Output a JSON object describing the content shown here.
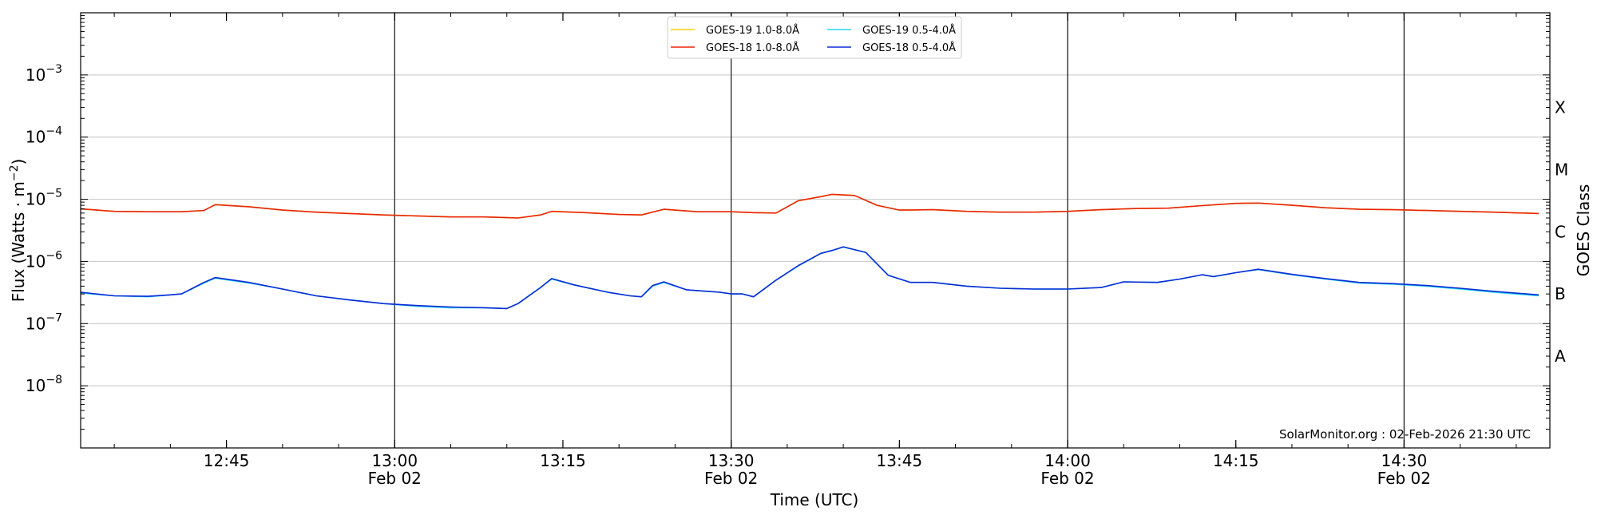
{
  "chart_data": {
    "type": "line",
    "xlabel": "Time (UTC)",
    "ylabel": "Flux (Watts · m",
    "ylabel_sup": "−2",
    "ylabel_close": ")",
    "right_axis_label": "GOES Class",
    "ylim": [
      1e-09,
      0.01
    ],
    "yscale": "log",
    "xlim": [
      "12:32",
      "14:43"
    ],
    "grid": "horizontal at decades",
    "legend_placement": "top-center",
    "x_ticks": [
      {
        "t": "12:45",
        "label": "12:45",
        "date": "",
        "major": false
      },
      {
        "t": "13:00",
        "label": "13:00",
        "date": "Feb 02",
        "major": true
      },
      {
        "t": "13:15",
        "label": "13:15",
        "date": "",
        "major": false
      },
      {
        "t": "13:30",
        "label": "13:30",
        "date": "Feb 02",
        "major": true
      },
      {
        "t": "13:45",
        "label": "13:45",
        "date": "",
        "major": false
      },
      {
        "t": "14:00",
        "label": "14:00",
        "date": "Feb 02",
        "major": true
      },
      {
        "t": "14:15",
        "label": "14:15",
        "date": "",
        "major": false
      },
      {
        "t": "14:30",
        "label": "14:30",
        "date": "Feb 02",
        "major": true
      }
    ],
    "y_ticks": [
      {
        "exp": -8,
        "label": "10",
        "sup": "−8"
      },
      {
        "exp": -7,
        "label": "10",
        "sup": "−7"
      },
      {
        "exp": -6,
        "label": "10",
        "sup": "−6"
      },
      {
        "exp": -5,
        "label": "10",
        "sup": "−5"
      },
      {
        "exp": -4,
        "label": "10",
        "sup": "−4"
      },
      {
        "exp": -3,
        "label": "10",
        "sup": "−3"
      }
    ],
    "goes_classes": [
      {
        "label": "A",
        "flux": 3e-08
      },
      {
        "label": "B",
        "flux": 3e-07
      },
      {
        "label": "C",
        "flux": 3e-06
      },
      {
        "label": "M",
        "flux": 3e-05
      },
      {
        "label": "X",
        "flux": 0.0003
      }
    ],
    "series": [
      {
        "name": "GOES-19 1.0-8.0Å",
        "color": "#f5d000",
        "x": [
          "12:32",
          "12:35",
          "12:38",
          "12:41",
          "12:43",
          "12:44",
          "12:47",
          "12:50",
          "12:53",
          "12:56",
          "12:59",
          "13:02",
          "13:05",
          "13:08",
          "13:11",
          "13:13",
          "13:14",
          "13:17",
          "13:20",
          "13:22",
          "13:24",
          "13:27",
          "13:30",
          "13:32",
          "13:34",
          "13:36",
          "13:38",
          "13:39",
          "13:41",
          "13:43",
          "13:45",
          "13:48",
          "13:51",
          "13:54",
          "13:57",
          "14:00",
          "14:03",
          "14:06",
          "14:09",
          "14:12",
          "14:15",
          "14:17",
          "14:20",
          "14:23",
          "14:26",
          "14:29",
          "14:32",
          "14:35",
          "14:38",
          "14:42"
        ],
        "y": [
          7e-06,
          6.4e-06,
          6.3e-06,
          6.3e-06,
          6.6e-06,
          8.2e-06,
          7.6e-06,
          6.7e-06,
          6.2e-06,
          5.9e-06,
          5.6e-06,
          5.4e-06,
          5.2e-06,
          5.2e-06,
          5e-06,
          5.6e-06,
          6.4e-06,
          6.1e-06,
          5.7e-06,
          5.6e-06,
          6.9e-06,
          6.3e-06,
          6.3e-06,
          6.1e-06,
          6e-06,
          9.5e-06,
          1.1e-05,
          1.2e-05,
          1.15e-05,
          8e-06,
          6.7e-06,
          6.8e-06,
          6.4e-06,
          6.2e-06,
          6.2e-06,
          6.4e-06,
          6.8e-06,
          7.1e-06,
          7.2e-06,
          7.9e-06,
          8.6e-06,
          8.7e-06,
          8e-06,
          7.3e-06,
          6.9e-06,
          6.8e-06,
          6.6e-06,
          6.4e-06,
          6.2e-06,
          5.9e-06
        ]
      },
      {
        "name": "GOES-18 1.0-8.0Å",
        "color": "#e8250a",
        "x": [
          "12:32",
          "12:35",
          "12:38",
          "12:41",
          "12:43",
          "12:44",
          "12:47",
          "12:50",
          "12:53",
          "12:56",
          "12:59",
          "13:02",
          "13:05",
          "13:08",
          "13:11",
          "13:13",
          "13:14",
          "13:17",
          "13:20",
          "13:22",
          "13:24",
          "13:27",
          "13:30",
          "13:32",
          "13:34",
          "13:36",
          "13:38",
          "13:39",
          "13:41",
          "13:43",
          "13:45",
          "13:48",
          "13:51",
          "13:54",
          "13:57",
          "14:00",
          "14:03",
          "14:06",
          "14:09",
          "14:12",
          "14:15",
          "14:17",
          "14:20",
          "14:23",
          "14:26",
          "14:29",
          "14:32",
          "14:35",
          "14:38",
          "14:42"
        ],
        "y": [
          7e-06,
          6.4e-06,
          6.3e-06,
          6.3e-06,
          6.6e-06,
          8.2e-06,
          7.6e-06,
          6.7e-06,
          6.2e-06,
          5.9e-06,
          5.6e-06,
          5.4e-06,
          5.2e-06,
          5.2e-06,
          5e-06,
          5.6e-06,
          6.4e-06,
          6.1e-06,
          5.7e-06,
          5.6e-06,
          6.9e-06,
          6.3e-06,
          6.3e-06,
          6.1e-06,
          6e-06,
          9.5e-06,
          1.1e-05,
          1.2e-05,
          1.15e-05,
          8e-06,
          6.7e-06,
          6.8e-06,
          6.4e-06,
          6.2e-06,
          6.2e-06,
          6.4e-06,
          6.8e-06,
          7.1e-06,
          7.2e-06,
          7.9e-06,
          8.6e-06,
          8.7e-06,
          8e-06,
          7.3e-06,
          6.9e-06,
          6.8e-06,
          6.6e-06,
          6.4e-06,
          6.2e-06,
          5.9e-06
        ]
      },
      {
        "name": "GOES-19 0.5-4.0Å",
        "color": "#22d8f0",
        "x": [
          "12:32",
          "12:35",
          "12:38",
          "12:40",
          "12:41",
          "12:43",
          "12:44",
          "12:47",
          "12:50",
          "12:53",
          "12:56",
          "12:59",
          "13:02",
          "13:05",
          "13:08",
          "13:10",
          "13:11",
          "13:13",
          "13:14",
          "13:16",
          "13:19",
          "13:21",
          "13:22",
          "13:23",
          "13:24",
          "13:26",
          "13:29",
          "13:30",
          "13:31",
          "13:32",
          "13:34",
          "13:36",
          "13:38",
          "13:39",
          "13:40",
          "13:42",
          "13:44",
          "13:46",
          "13:48",
          "13:51",
          "13:54",
          "13:57",
          "14:00",
          "14:03",
          "14:05",
          "14:08",
          "14:10",
          "14:12",
          "14:13",
          "14:15",
          "14:17",
          "14:20",
          "14:23",
          "14:26",
          "14:29",
          "14:32",
          "14:35",
          "14:38",
          "14:42"
        ],
        "y": [
          3.1e-07,
          2.8e-07,
          2.7e-07,
          2.9e-07,
          3e-07,
          4.5e-07,
          5.4e-07,
          4.5e-07,
          3.6e-07,
          2.8e-07,
          2.4e-07,
          2.1e-07,
          1.9e-07,
          1.8e-07,
          1.8e-07,
          1.75e-07,
          2.1e-07,
          3.8e-07,
          5.2e-07,
          4.2e-07,
          3.2e-07,
          2.8e-07,
          2.7e-07,
          4e-07,
          4.6e-07,
          3.5e-07,
          3.2e-07,
          3e-07,
          3e-07,
          2.7e-07,
          5e-07,
          8.5e-07,
          1.35e-06,
          1.5e-06,
          1.7e-06,
          1.4e-06,
          6e-07,
          4.6e-07,
          4.6e-07,
          4e-07,
          3.7e-07,
          3.6e-07,
          3.6e-07,
          3.8e-07,
          4.7e-07,
          4.6e-07,
          5.2e-07,
          6.1e-07,
          5.7e-07,
          6.6e-07,
          7.4e-07,
          6.1e-07,
          5.2e-07,
          4.5e-07,
          4.3e-07,
          4e-07,
          3.6e-07,
          3.2e-07,
          2.8e-07
        ]
      },
      {
        "name": "GOES-18 0.5-4.0Å",
        "color": "#0b2bd6",
        "x": [
          "12:32",
          "12:35",
          "12:38",
          "12:40",
          "12:41",
          "12:43",
          "12:44",
          "12:47",
          "12:50",
          "12:53",
          "12:56",
          "12:59",
          "13:02",
          "13:05",
          "13:08",
          "13:10",
          "13:11",
          "13:13",
          "13:14",
          "13:16",
          "13:19",
          "13:21",
          "13:22",
          "13:23",
          "13:24",
          "13:26",
          "13:29",
          "13:30",
          "13:31",
          "13:32",
          "13:34",
          "13:36",
          "13:38",
          "13:39",
          "13:40",
          "13:42",
          "13:44",
          "13:46",
          "13:48",
          "13:51",
          "13:54",
          "13:57",
          "14:00",
          "14:03",
          "14:05",
          "14:08",
          "14:10",
          "14:12",
          "14:13",
          "14:15",
          "14:17",
          "14:20",
          "14:23",
          "14:26",
          "14:29",
          "14:32",
          "14:35",
          "14:38",
          "14:42"
        ],
        "y": [
          3.2e-07,
          2.8e-07,
          2.75e-07,
          2.9e-07,
          3e-07,
          4.6e-07,
          5.5e-07,
          4.6e-07,
          3.6e-07,
          2.8e-07,
          2.4e-07,
          2.1e-07,
          1.95e-07,
          1.85e-07,
          1.8e-07,
          1.75e-07,
          2.1e-07,
          3.8e-07,
          5.3e-07,
          4.2e-07,
          3.2e-07,
          2.8e-07,
          2.7e-07,
          4.1e-07,
          4.7e-07,
          3.5e-07,
          3.2e-07,
          3e-07,
          3e-07,
          2.7e-07,
          5e-07,
          8.6e-07,
          1.35e-06,
          1.5e-06,
          1.72e-06,
          1.4e-06,
          6e-07,
          4.6e-07,
          4.6e-07,
          4e-07,
          3.7e-07,
          3.6e-07,
          3.6e-07,
          3.8e-07,
          4.7e-07,
          4.6e-07,
          5.2e-07,
          6.1e-07,
          5.7e-07,
          6.6e-07,
          7.5e-07,
          6.2e-07,
          5.3e-07,
          4.6e-07,
          4.4e-07,
          4.1e-07,
          3.7e-07,
          3.3e-07,
          2.9e-07
        ]
      }
    ],
    "credit": "SolarMonitor.org : 02-Feb-2026 21:30 UTC"
  }
}
